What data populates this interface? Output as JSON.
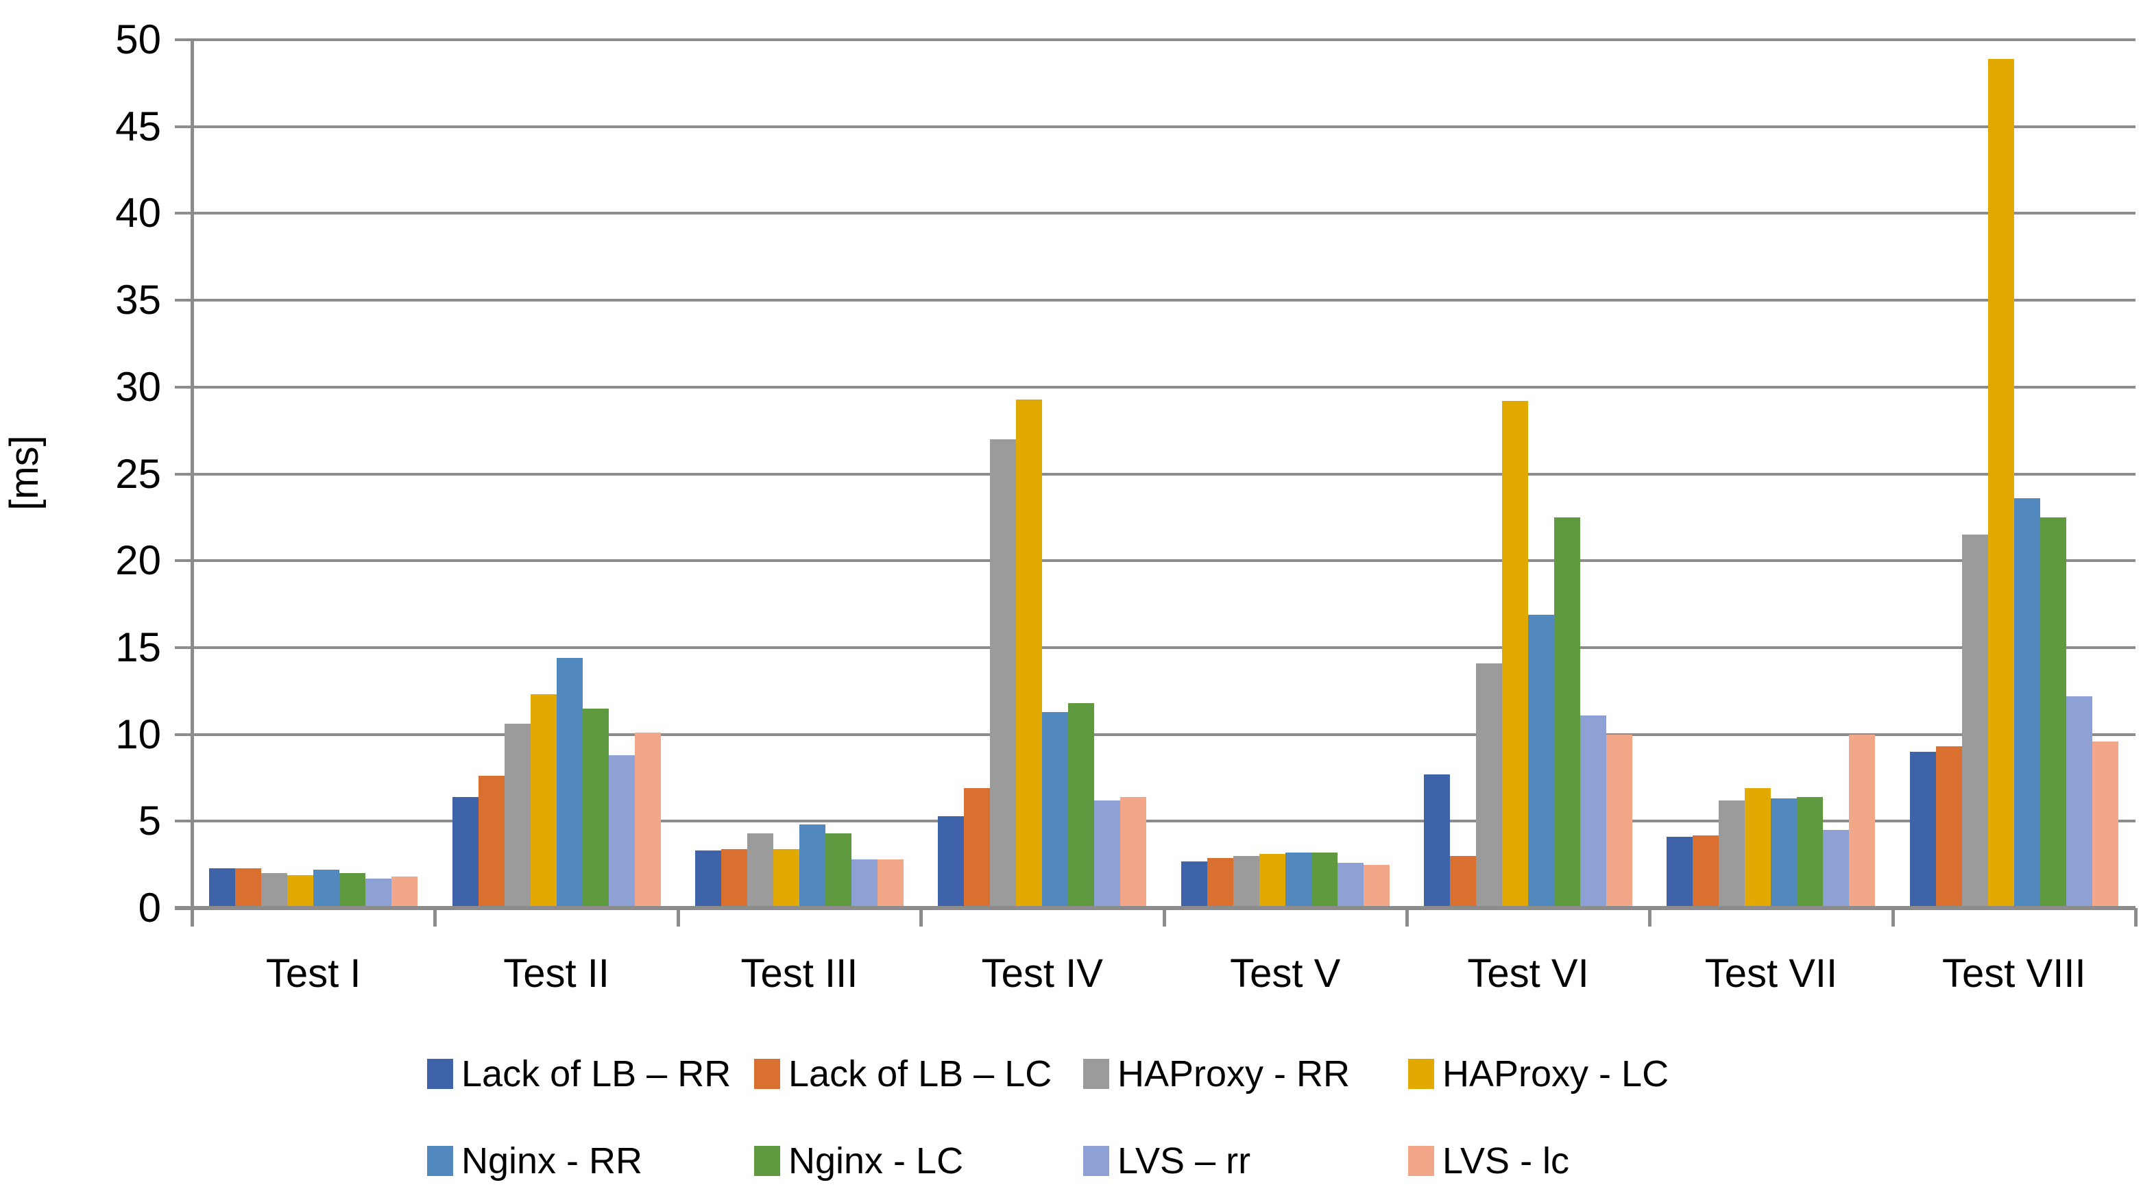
{
  "chart_data": {
    "type": "bar",
    "title": "",
    "ylabel": "[ms]",
    "ylim": [
      0,
      50
    ],
    "ytick_step": 5,
    "yticks": [
      0,
      5,
      10,
      15,
      20,
      25,
      30,
      35,
      40,
      45,
      50
    ],
    "grid": true,
    "legend_position": "bottom",
    "categories": [
      "Test I",
      "Test II",
      "Test III",
      "Test IV",
      "Test V",
      "Test VI",
      "Test VII",
      "Test VIII"
    ],
    "series": [
      {
        "name": "Lack of LB – RR",
        "color": "#3e63a9",
        "values": [
          2.3,
          6.4,
          3.3,
          5.3,
          2.7,
          7.7,
          4.1,
          9.0
        ]
      },
      {
        "name": "Lack of LB – LC",
        "color": "#d9702f",
        "values": [
          2.3,
          7.6,
          3.4,
          6.9,
          2.9,
          3.0,
          4.2,
          9.3
        ]
      },
      {
        "name": "HAProxy - RR",
        "color": "#9b9b9b",
        "values": [
          2.0,
          10.6,
          4.3,
          27.0,
          3.0,
          14.1,
          6.2,
          21.5
        ]
      },
      {
        "name": "HAProxy - LC",
        "color": "#e2a900",
        "values": [
          1.9,
          12.3,
          3.4,
          29.3,
          3.1,
          29.2,
          6.9,
          48.9
        ]
      },
      {
        "name": "Nginx - RR",
        "color": "#5189be",
        "values": [
          2.2,
          14.4,
          4.8,
          11.3,
          3.2,
          16.9,
          6.3,
          23.6
        ]
      },
      {
        "name": "Nginx - LC",
        "color": "#5f9a41",
        "values": [
          2.0,
          11.5,
          4.3,
          11.8,
          3.2,
          22.5,
          6.4,
          22.5
        ]
      },
      {
        "name": "LVS – rr",
        "color": "#8ea1d4",
        "values": [
          1.7,
          8.8,
          2.8,
          6.2,
          2.6,
          11.1,
          4.5,
          12.2
        ]
      },
      {
        "name": "LVS - lc",
        "color": "#f2a789",
        "values": [
          1.8,
          10.1,
          2.8,
          6.4,
          2.5,
          10.0,
          10.0,
          9.6
        ]
      }
    ],
    "legend_rows": [
      [
        0,
        1,
        2,
        3
      ],
      [
        4,
        5,
        6,
        7
      ]
    ],
    "axis_color": "#8c8c8c"
  }
}
